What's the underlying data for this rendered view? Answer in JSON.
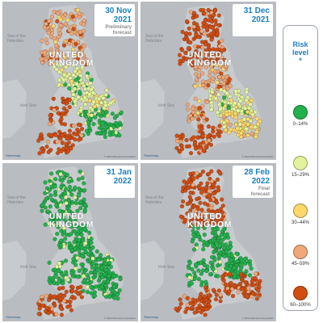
{
  "legend": {
    "title": "Risk\nlevel\n*",
    "levels": [
      {
        "label": "0–14%",
        "color": "#22b14c"
      },
      {
        "label": "15–29%",
        "color": "#e3f39c"
      },
      {
        "label": "30–44%",
        "color": "#fdd86a"
      },
      {
        "label": "45–59%",
        "color": "#f0a878"
      },
      {
        "label": "60–100%",
        "color": "#d24d12"
      }
    ]
  },
  "map": {
    "country_label_lines": [
      "UNITED",
      "KINGDOM"
    ],
    "logo_text": "Streetmap",
    "copyright_text": "© 2022 Microsoft Corporation"
  },
  "panels": [
    {
      "date": "30 Nov\n2021",
      "subtitle": "Preliminary\nforecast",
      "regions": {
        "scot": 3,
        "north": 1,
        "mid": 1,
        "se": 0,
        "sw": 4,
        "wales": 4
      },
      "sea_labels": [
        "Sea of the\nHebrides",
        "Irish Sea"
      ]
    },
    {
      "date": "31 Dec\n2021",
      "subtitle": "",
      "regions": {
        "scot": 4,
        "north": 3,
        "mid": 1,
        "se": 2,
        "sw": 4,
        "wales": 3
      },
      "sea_labels": [
        "Sea of the\nHebrides",
        "Irish Sea"
      ]
    },
    {
      "date": "31 Jan\n2022",
      "subtitle": "",
      "regions": {
        "scot": 0,
        "north": 0,
        "mid": 0,
        "se": 0,
        "sw": 4,
        "wales": 0
      },
      "sea_labels": [
        "Sea of the\nHebrides",
        "Irish Sea"
      ]
    },
    {
      "date": "28 Feb\n2022",
      "subtitle": "Final\nforecast",
      "regions": {
        "scot": 4,
        "north": 0,
        "mid": 0,
        "se": 4,
        "sw": 4,
        "wales": 0
      },
      "sea_labels": [
        "Sea of the\nHebrides",
        "Irish Sea"
      ]
    }
  ]
}
